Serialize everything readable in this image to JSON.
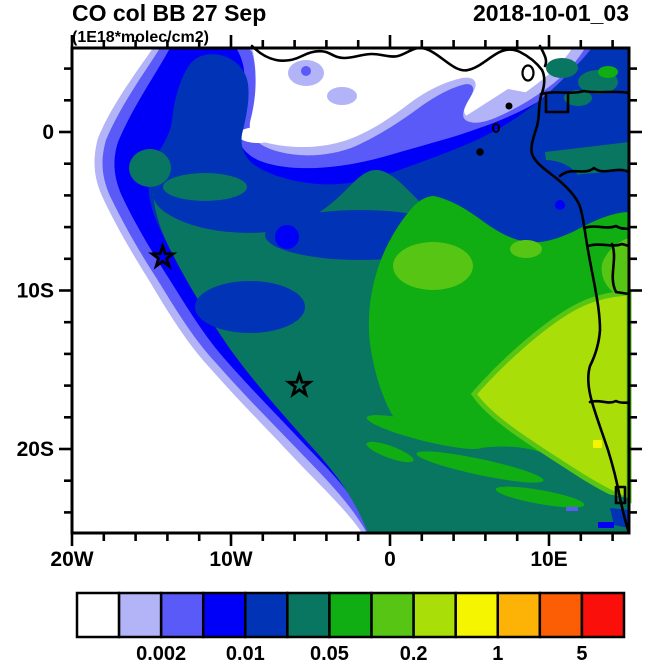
{
  "header": {
    "title": "CO col BB 27 Sep",
    "timestamp": "2018-10-01_03",
    "units": "(1E18*molec/cm2)"
  },
  "axes": {
    "x_labels": [
      {
        "value": -20,
        "text": "20W"
      },
      {
        "value": -10,
        "text": "10W"
      },
      {
        "value": 0,
        "text": "0"
      },
      {
        "value": 10,
        "text": "10E"
      }
    ],
    "y_labels": [
      {
        "value": 0,
        "text": "0"
      },
      {
        "value": -10,
        "text": "10S"
      },
      {
        "value": -20,
        "text": "20S"
      }
    ],
    "minor_tick_interval_deg": 2
  },
  "chart_data": {
    "type": "heatmap",
    "subtype": "filled-contour-map",
    "title": "CO col BB 27 Sep",
    "timestamp_label": "2018-10-01_03",
    "units": "(1E18*molec/cm2)",
    "lon_range": [
      -20,
      15.1
    ],
    "lat_range": [
      -25.6,
      5.3
    ],
    "region": "South-East Atlantic / West-Central Africa biomass-burning CO plume",
    "levels": [
      "0.001",
      "0.002",
      "0.005",
      "0.01",
      "0.02",
      "0.05",
      "0.1",
      "0.2",
      "0.5",
      "1",
      "2",
      "5"
    ],
    "labeled_levels": [
      "0.002",
      "0.01",
      "0.05",
      "0.2",
      "1",
      "5"
    ],
    "palette": [
      "#ffffff",
      "#b3b3f7",
      "#5a5af8",
      "#0000f8",
      "#0033b5",
      "#087661",
      "#10ae12",
      "#57c513",
      "#a9de08",
      "#f5f500",
      "#fdb306",
      "#fc5e05",
      "#fb0f0a"
    ],
    "colorbar_label_boundary_indices": [
      1,
      3,
      5,
      7,
      9,
      11
    ],
    "markers": [
      {
        "type": "star",
        "lon": -14.3,
        "lat": -7.9
      },
      {
        "type": "star",
        "lon": -5.7,
        "lat": -16.0
      }
    ],
    "legend_position": "bottom",
    "grid": false
  }
}
